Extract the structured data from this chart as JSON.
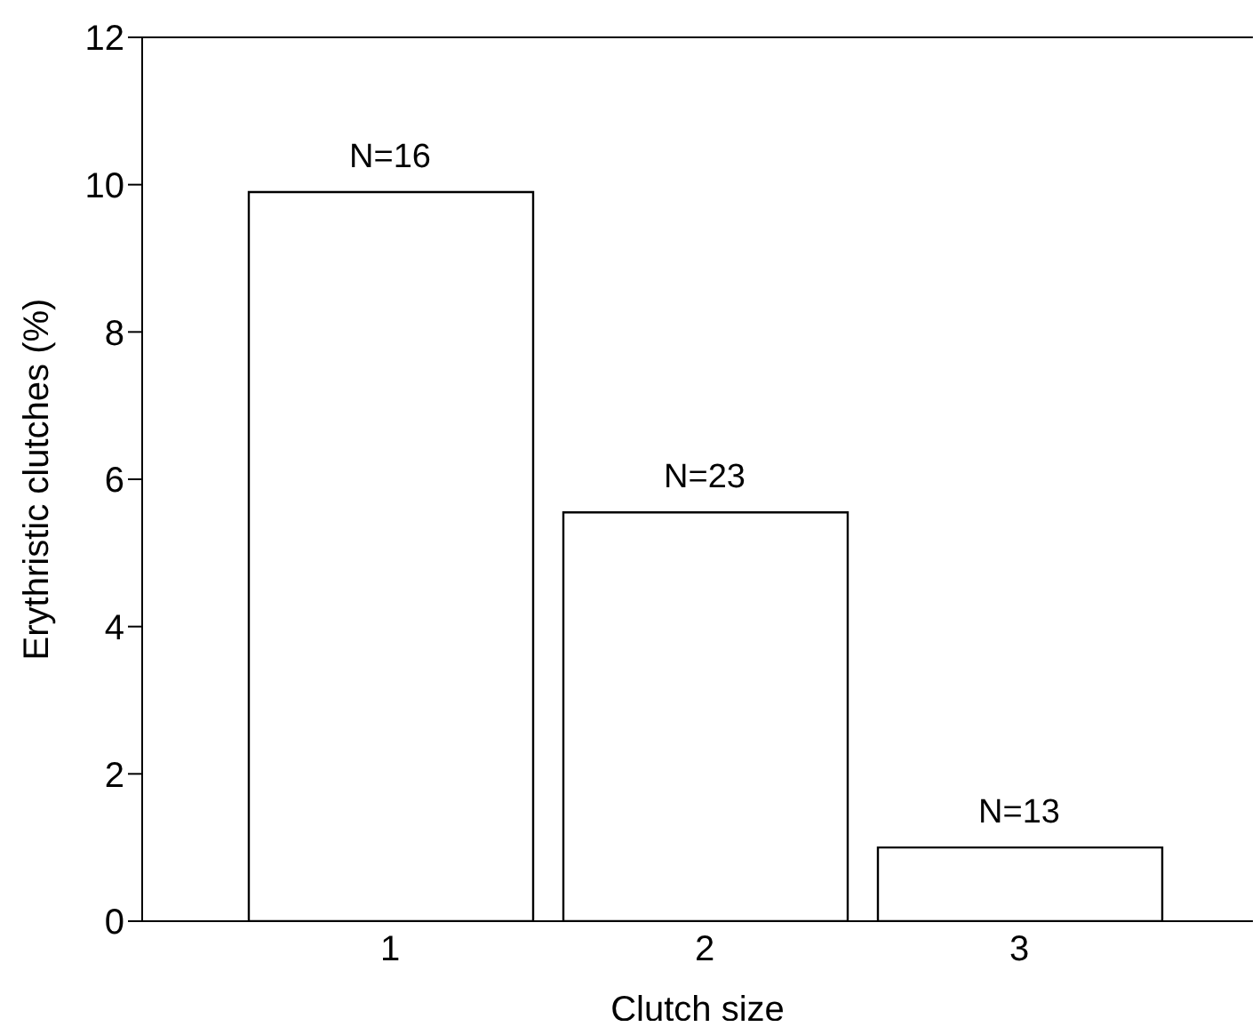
{
  "chart_data": {
    "type": "bar",
    "xlabel": "Clutch size",
    "ylabel": "Erythristic clutches (%)",
    "categories": [
      "1",
      "2",
      "3"
    ],
    "values": [
      9.9,
      5.55,
      1.0
    ],
    "color": "#ffffff",
    "ylim": [
      0,
      12
    ],
    "yticks": [
      0,
      2,
      4,
      6,
      8,
      10,
      12
    ],
    "grid": false,
    "legend": false,
    "annotations": [
      {
        "text": "N=16",
        "x": "1",
        "y": 9.9
      },
      {
        "text": "N=23",
        "x": "2",
        "y": 5.55
      },
      {
        "text": "N=13",
        "x": "3",
        "y": 1.0
      }
    ]
  }
}
